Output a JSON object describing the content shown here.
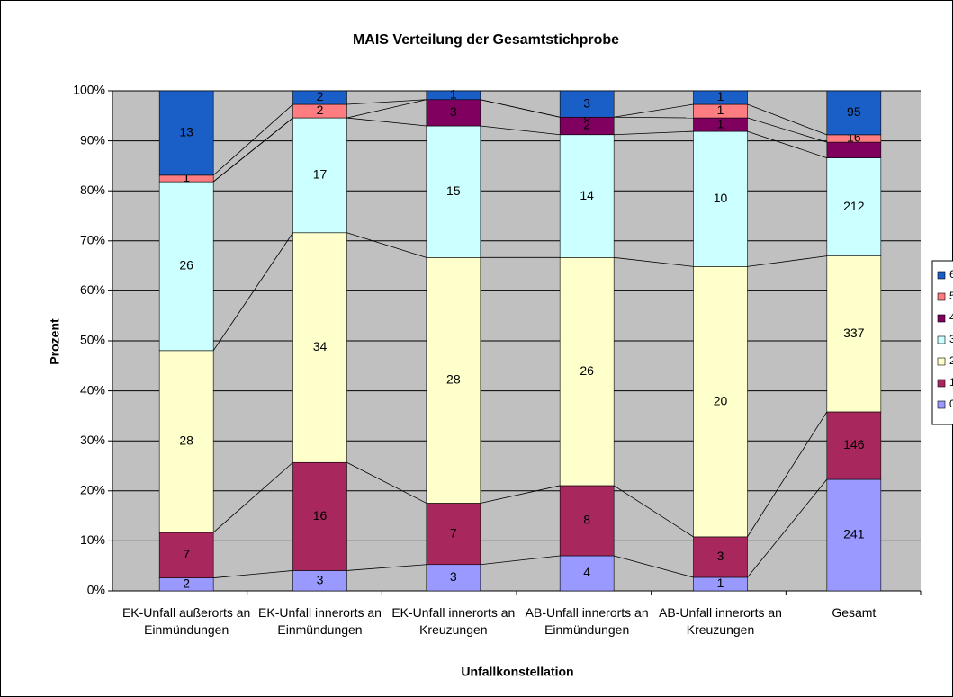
{
  "chart_data": {
    "type": "bar",
    "stacking": "percent",
    "title": "MAIS Verteilung der Gesamtstichprobe",
    "x_label": "Unfallkonstellation",
    "y_label": "Prozent",
    "categories": [
      "EK-Unfall außerorts an Einmündungen",
      "EK-Unfall innerorts an Einmündungen",
      "EK-Unfall innerorts an Kreuzungen",
      "AB-Unfall innerorts an Einmündungen",
      "AB-Unfall innerorts an Kreuzungen",
      "Gesamt"
    ],
    "series": [
      {
        "name": "0",
        "color": "#9999ff",
        "values": [
          2,
          3,
          3,
          4,
          1,
          241
        ]
      },
      {
        "name": "1",
        "color": "#a8285e",
        "values": [
          7,
          16,
          7,
          8,
          3,
          146
        ]
      },
      {
        "name": "2",
        "color": "#ffffcc",
        "values": [
          28,
          34,
          28,
          26,
          20,
          337
        ]
      },
      {
        "name": "3",
        "color": "#ccffff",
        "values": [
          26,
          17,
          15,
          14,
          10,
          212
        ]
      },
      {
        "name": "4",
        "color": "#800060",
        "values": [
          null,
          null,
          3,
          2,
          1,
          34
        ],
        "value_labels": [
          null,
          null,
          "3",
          "2",
          "1",
          null
        ]
      },
      {
        "name": "5",
        "color": "#ff7c80",
        "values": [
          1,
          2,
          null,
          0,
          1,
          16
        ]
      },
      {
        "name": "6",
        "color": "#1a5fc8",
        "values": [
          13,
          2,
          1,
          3,
          1,
          95
        ]
      }
    ],
    "ylim": [
      0,
      100
    ],
    "yticks": [
      {
        "value": 0,
        "label": "0%"
      },
      {
        "value": 10,
        "label": "10%"
      },
      {
        "value": 20,
        "label": "20%"
      },
      {
        "value": 30,
        "label": "30%"
      },
      {
        "value": 40,
        "label": "40%"
      },
      {
        "value": 50,
        "label": "50%"
      },
      {
        "value": 60,
        "label": "60%"
      },
      {
        "value": 70,
        "label": "70%"
      },
      {
        "value": 80,
        "label": "80%"
      },
      {
        "value": 90,
        "label": "90%"
      },
      {
        "value": 100,
        "label": "100%"
      }
    ],
    "grid": true,
    "legend": "right"
  }
}
